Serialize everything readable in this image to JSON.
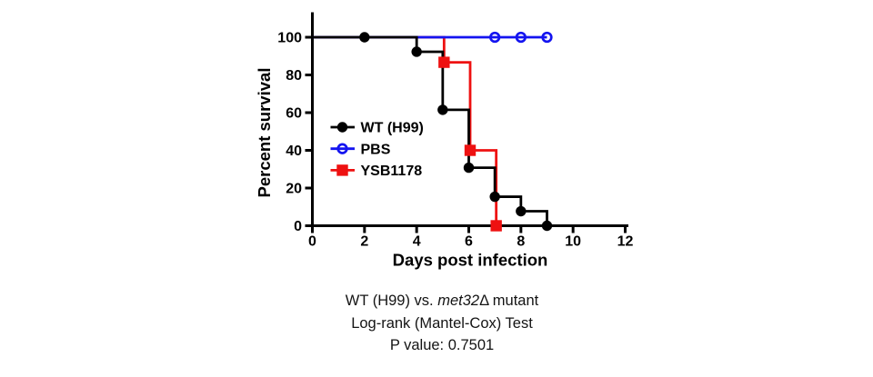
{
  "chart_data": {
    "type": "line",
    "subtype": "kaplan-meier-survival-steps",
    "title": "",
    "xlabel": "Days post infection",
    "ylabel": "Percent survival",
    "xlim": [
      0,
      12
    ],
    "ylim": [
      0,
      100
    ],
    "x_ticks": [
      0,
      2,
      4,
      6,
      8,
      10,
      12
    ],
    "y_ticks": [
      0,
      20,
      40,
      60,
      80,
      100
    ],
    "grid": false,
    "legend_position": "inside-left",
    "series": [
      {
        "name": "WT (H99)",
        "color": "#000000",
        "marker": "circle-filled",
        "step_points": [
          [
            0,
            100
          ],
          [
            4,
            100
          ],
          [
            4,
            92.3
          ],
          [
            5,
            92.3
          ],
          [
            5,
            61.5
          ],
          [
            6,
            61.5
          ],
          [
            6,
            30.8
          ],
          [
            7,
            30.8
          ],
          [
            7,
            15.4
          ],
          [
            8,
            15.4
          ],
          [
            8,
            7.7
          ],
          [
            9,
            7.7
          ],
          [
            9,
            0
          ]
        ],
        "marker_points": [
          [
            2,
            100
          ],
          [
            4,
            92.3
          ],
          [
            5,
            61.5
          ],
          [
            6,
            30.8
          ],
          [
            7,
            15.4
          ],
          [
            8,
            7.7
          ],
          [
            9,
            0
          ]
        ]
      },
      {
        "name": "PBS",
        "color": "#1414f0",
        "marker": "circle-open",
        "step_points": [
          [
            0,
            100
          ],
          [
            9,
            100
          ]
        ],
        "marker_points": [
          [
            7,
            100
          ],
          [
            8,
            100
          ],
          [
            9,
            100
          ]
        ]
      },
      {
        "name": "YSB1178",
        "color": "#ee1111",
        "marker": "square-filled",
        "step_points": [
          [
            0,
            100
          ],
          [
            5,
            100
          ],
          [
            5,
            86.7
          ],
          [
            6,
            86.7
          ],
          [
            6,
            40
          ],
          [
            7,
            40
          ],
          [
            7,
            0
          ]
        ],
        "marker_points": [
          [
            5,
            86.7
          ],
          [
            6,
            40
          ],
          [
            7,
            0
          ]
        ]
      }
    ],
    "legend": [
      "WT (H99)",
      "PBS",
      "YSB1178"
    ]
  },
  "caption": {
    "line1_prefix": "WT (H99) vs. ",
    "line1_italic": "met32",
    "line1_suffix": "Δ mutant",
    "line2": "Log-rank (Mantel-Cox) Test",
    "line3": "P value: 0.7501"
  }
}
